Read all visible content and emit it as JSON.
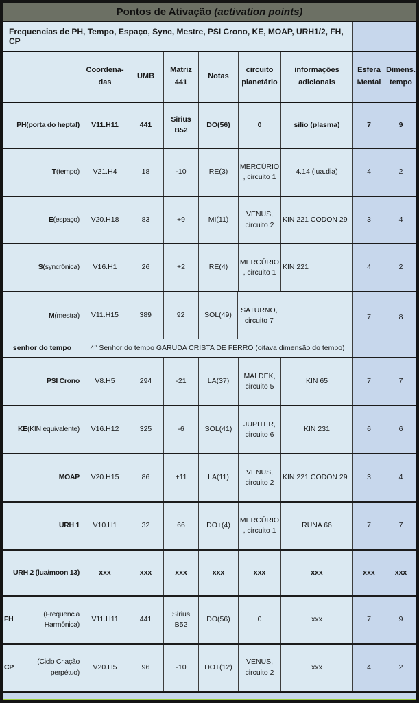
{
  "title": {
    "main": "Pontos de Ativação",
    "italic": "(activation points)"
  },
  "subtitle": "Frequencias de PH, Tempo, Espaço, Sync, Mestre, PSI Crono, KE, MOAP, URH1/2, FH, CP",
  "columns": [
    "",
    "Coordena-\ndas",
    "UMB",
    "Matriz\n441",
    "Notas",
    "circuito\nplanetário",
    "informações\nadicionais",
    "Esfera\nMental",
    "Dimens.\ntempo"
  ],
  "rows": [
    {
      "label_bold": "PH",
      "label_rest": " (porta do heptal)",
      "bold": true,
      "cells": [
        "V11.H11",
        "441",
        "Sirius B52",
        "DO(56)",
        "0",
        "silio  (plasma)",
        "7",
        "9"
      ]
    },
    {
      "label_bold": "T",
      "label_rest": " (tempo)",
      "cells": [
        "V21.H4",
        "18",
        "-10",
        "RE(3)",
        "MERCÚRIO\n, circuito 1",
        "4.14  (lua.dia)",
        "4",
        "2"
      ]
    },
    {
      "label_bold": "E",
      "label_rest": " (espaço)",
      "info_align": "left",
      "cells": [
        "V20.H18",
        "83",
        "+9",
        "MI(11)",
        "VENUS,\ncircuito 2",
        "KIN 221  CODON 29",
        "3",
        "4"
      ]
    },
    {
      "label_bold": "S",
      "label_rest": " (syncrônica)",
      "info_align": "left",
      "cells": [
        "V16.H1",
        "26",
        "+2",
        "RE(4)",
        "MERCÚRIO\n, circuito 1",
        "KIN 221",
        "4",
        "2"
      ]
    },
    {
      "type": "master",
      "label_bold": "M",
      "label_rest": " (mestra)",
      "sub_label": "senhor do tempo",
      "sub_text": "4° Senhor do tempo GARUDA CRISTA DE FERRO (oitava dimensão do tempo)",
      "cells": [
        "V11.H15",
        "389",
        "92",
        "SOL(49)",
        "SATURNO,\ncircuito 7",
        "",
        "7",
        "8"
      ]
    },
    {
      "label_bold": "PSI Crono",
      "label_rest": "",
      "cells": [
        "V8.H5",
        "294",
        "-21",
        "LA(37)",
        "MALDEK,\ncircuito 5",
        "KIN 65",
        "7",
        "7"
      ]
    },
    {
      "label_bold": "KE",
      "label_rest": " (KIN equivalente)",
      "cells": [
        "V16.H12",
        "325",
        "-6",
        "SOL(41)",
        "JUPITER,\ncircuito 6",
        "KIN 231",
        "6",
        "6"
      ]
    },
    {
      "label_bold": "MOAP",
      "label_rest": "",
      "info_align": "left",
      "cells": [
        "V20.H15",
        "86",
        "+11",
        "LA(11)",
        "VENUS,\ncircuito 2",
        "KIN 221  CODON 29",
        "3",
        "4"
      ]
    },
    {
      "label_bold": "URH 1",
      "label_rest": "",
      "cells": [
        "V10.H1",
        "32",
        "66",
        "DO+(4)",
        "MERCÚRIO\n, circuito 1",
        "RUNA 66",
        "7",
        "7"
      ]
    },
    {
      "label_bold": "URH 2 (lua/moon 13)",
      "label_rest": "",
      "bold": true,
      "cells": [
        "xxx",
        "xxx",
        "xxx",
        "xxx",
        "xxx",
        "xxx",
        "xxx",
        "xxx"
      ]
    },
    {
      "label_bold": "FH",
      "label_rest": " (Frequencia Harmônica)",
      "cells": [
        "V11.H11",
        "441",
        "Sirius B52",
        "DO(56)",
        "0",
        "xxx",
        "7",
        "9"
      ]
    },
    {
      "label_bold": "CP",
      "label_rest": " (Ciclo Criação perpétuo)",
      "cells": [
        "V20.H5",
        "96",
        "-10",
        "DO+(12)",
        "VENUS,\ncircuito 2",
        "xxx",
        "4",
        "2"
      ]
    }
  ],
  "colors": {
    "cell_background": "#dbe9f2",
    "accent_background": "#c7d7ec",
    "title_background": "#6c7064",
    "border_dark": "#141414",
    "green_line": "#9ccc3d",
    "text": "#1a1a1a"
  }
}
